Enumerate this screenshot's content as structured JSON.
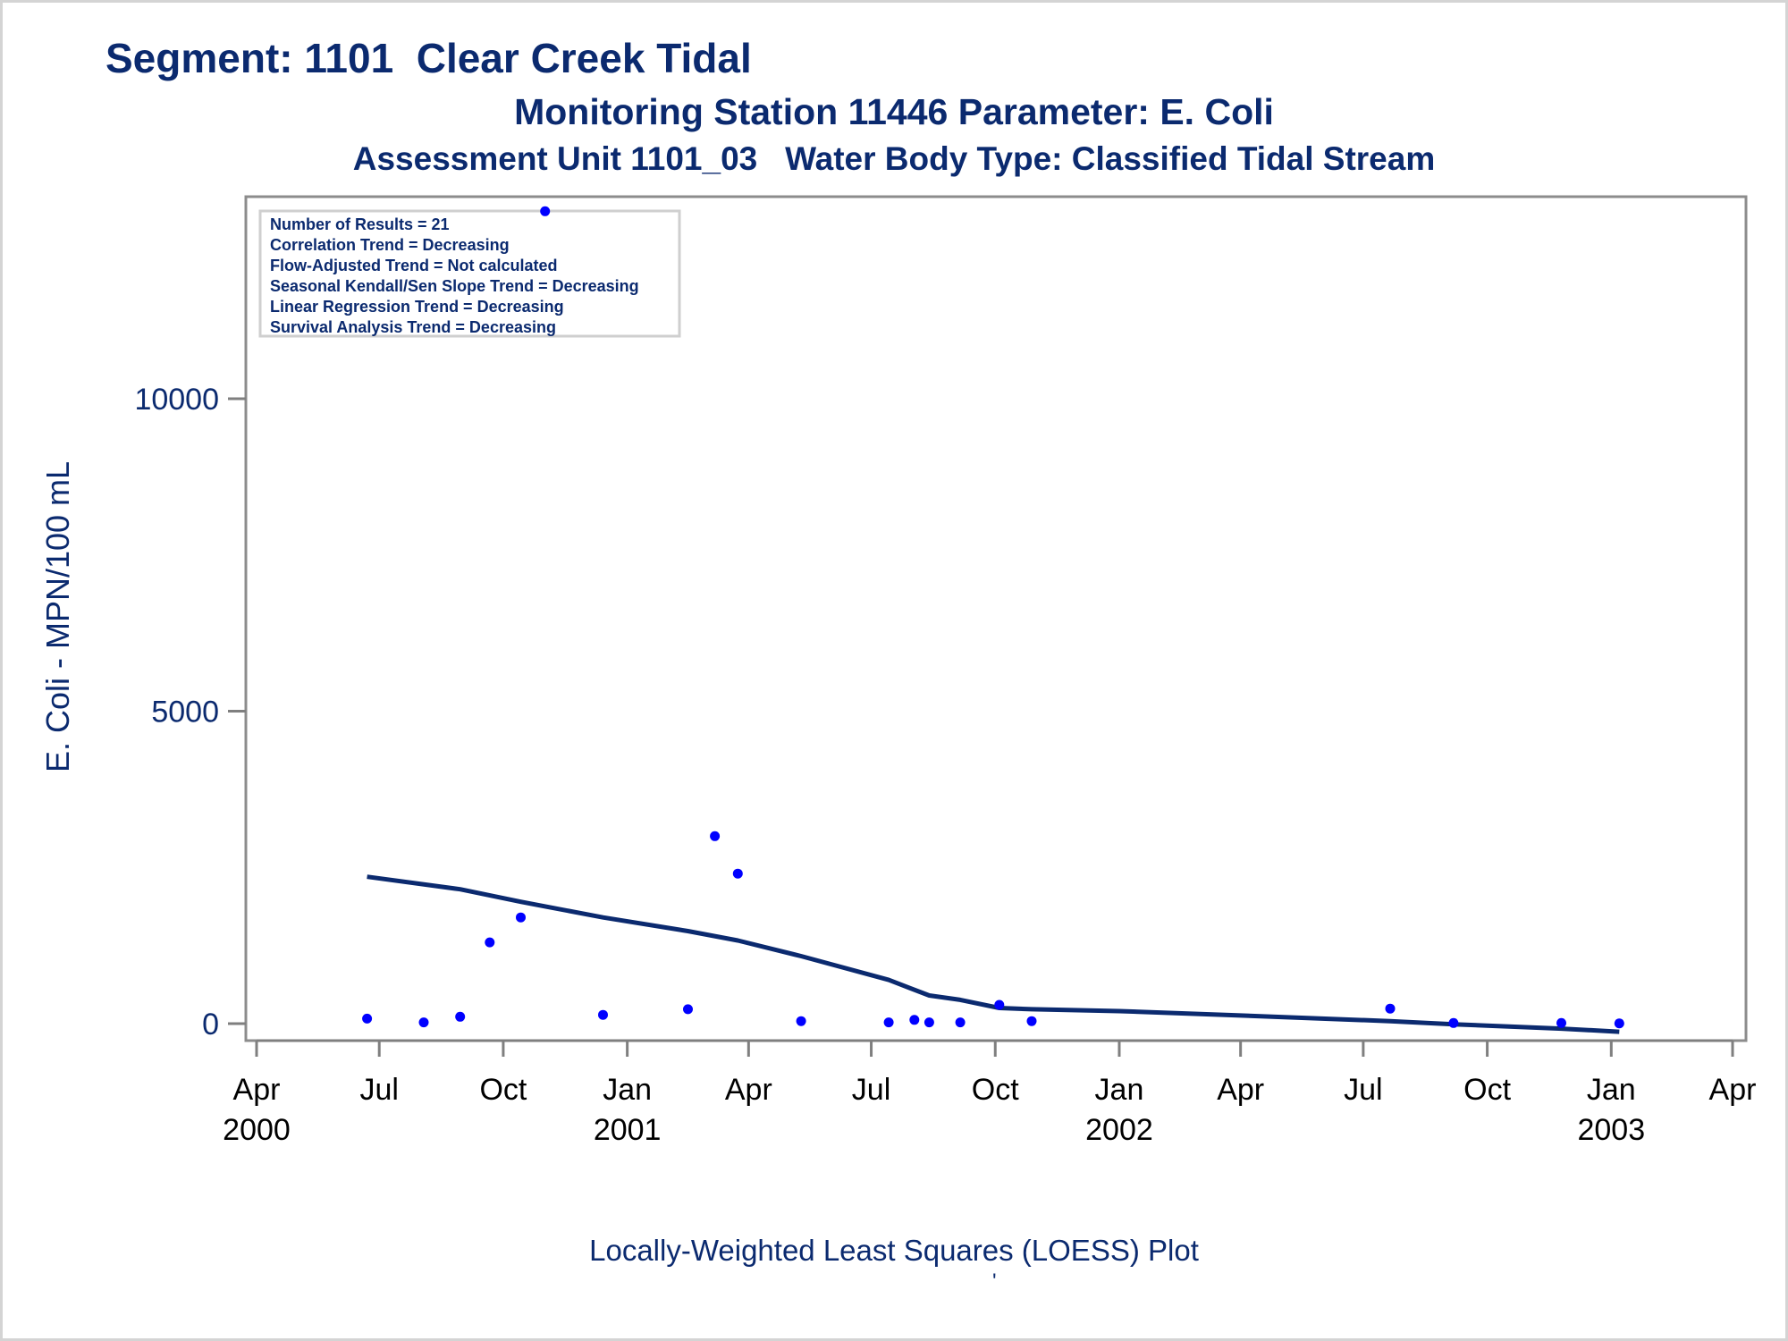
{
  "titles": {
    "line1": "Segment: 1101  Clear Creek Tidal",
    "line2": "Monitoring Station 11446 Parameter: E. Coli",
    "line3": "Assessment Unit 1101_03   Water Body Type: Classified Tidal Stream"
  },
  "footnote": "Locally-Weighted Least Squares (LOESS) Plot",
  "footnote_mark": "'",
  "colors": {
    "text": "#0b2a6f",
    "points": "#0000ff",
    "loess_line": "#0b2a6f",
    "axis": "#7f7f7f"
  },
  "chart_data": {
    "type": "scatter",
    "title": "Segment: 1101  Clear Creek Tidal",
    "ylabel": "E. Coli - MPN/100 mL",
    "xlabel": "",
    "ylim": [
      -250,
      13100
    ],
    "xlim": [
      "2000-04-01",
      "2003-04-01"
    ],
    "yticks": [
      0,
      5000,
      10000
    ],
    "xticks": [
      {
        "date": "2000-04-01",
        "month": "Apr",
        "year": "2000"
      },
      {
        "date": "2000-07-01",
        "month": "Jul",
        "year": ""
      },
      {
        "date": "2000-10-01",
        "month": "Oct",
        "year": ""
      },
      {
        "date": "2001-01-01",
        "month": "Jan",
        "year": "2001"
      },
      {
        "date": "2001-04-01",
        "month": "Apr",
        "year": ""
      },
      {
        "date": "2001-07-01",
        "month": "Jul",
        "year": ""
      },
      {
        "date": "2001-10-01",
        "month": "Oct",
        "year": ""
      },
      {
        "date": "2002-01-01",
        "month": "Jan",
        "year": "2002"
      },
      {
        "date": "2002-04-01",
        "month": "Apr",
        "year": ""
      },
      {
        "date": "2002-07-01",
        "month": "Jul",
        "year": ""
      },
      {
        "date": "2002-10-01",
        "month": "Oct",
        "year": ""
      },
      {
        "date": "2003-01-01",
        "month": "Jan",
        "year": "2003"
      },
      {
        "date": "2003-04-01",
        "month": "Apr",
        "year": ""
      }
    ],
    "grid": false,
    "legend": {
      "placement": "top-left",
      "lines": [
        "Number of Results = 21",
        "Correlation Trend = Decreasing",
        "Flow-Adjusted Trend = Not calculated",
        "Seasonal Kendall/Sen Slope Trend = Decreasing",
        "Linear Regression Trend = Decreasing",
        "Survival Analysis Trend = Decreasing"
      ]
    },
    "series": [
      {
        "type": "scatter",
        "points": [
          {
            "x": "2000-06-22",
            "y": 80
          },
          {
            "x": "2000-08-03",
            "y": 20
          },
          {
            "x": "2000-08-30",
            "y": 110
          },
          {
            "x": "2000-09-21",
            "y": 1300
          },
          {
            "x": "2000-10-14",
            "y": 1700
          },
          {
            "x": "2000-11-01",
            "y": 13000
          },
          {
            "x": "2000-12-14",
            "y": 140
          },
          {
            "x": "2001-02-15",
            "y": 230
          },
          {
            "x": "2001-03-07",
            "y": 3000
          },
          {
            "x": "2001-03-24",
            "y": 2400
          },
          {
            "x": "2001-05-10",
            "y": 40
          },
          {
            "x": "2001-07-14",
            "y": 20
          },
          {
            "x": "2001-08-02",
            "y": 60
          },
          {
            "x": "2001-08-13",
            "y": 20
          },
          {
            "x": "2001-09-05",
            "y": 20
          },
          {
            "x": "2001-10-04",
            "y": 300
          },
          {
            "x": "2001-10-28",
            "y": 40
          },
          {
            "x": "2002-07-21",
            "y": 240
          },
          {
            "x": "2002-09-06",
            "y": 10
          },
          {
            "x": "2002-11-25",
            "y": 10
          },
          {
            "x": "2003-01-07",
            "y": 5
          }
        ]
      },
      {
        "type": "line",
        "points": [
          {
            "x": "2000-06-22",
            "y": 2350
          },
          {
            "x": "2000-08-30",
            "y": 2150
          },
          {
            "x": "2000-10-14",
            "y": 1950
          },
          {
            "x": "2000-12-14",
            "y": 1700
          },
          {
            "x": "2001-02-15",
            "y": 1480
          },
          {
            "x": "2001-03-24",
            "y": 1330
          },
          {
            "x": "2001-05-10",
            "y": 1080
          },
          {
            "x": "2001-07-14",
            "y": 700
          },
          {
            "x": "2001-08-13",
            "y": 450
          },
          {
            "x": "2001-09-05",
            "y": 380
          },
          {
            "x": "2001-10-04",
            "y": 250
          },
          {
            "x": "2001-10-28",
            "y": 230
          },
          {
            "x": "2002-01-01",
            "y": 200
          },
          {
            "x": "2002-04-01",
            "y": 130
          },
          {
            "x": "2002-07-21",
            "y": 40
          },
          {
            "x": "2002-09-06",
            "y": -10
          },
          {
            "x": "2002-11-25",
            "y": -80
          },
          {
            "x": "2003-01-07",
            "y": -130
          }
        ]
      }
    ]
  }
}
